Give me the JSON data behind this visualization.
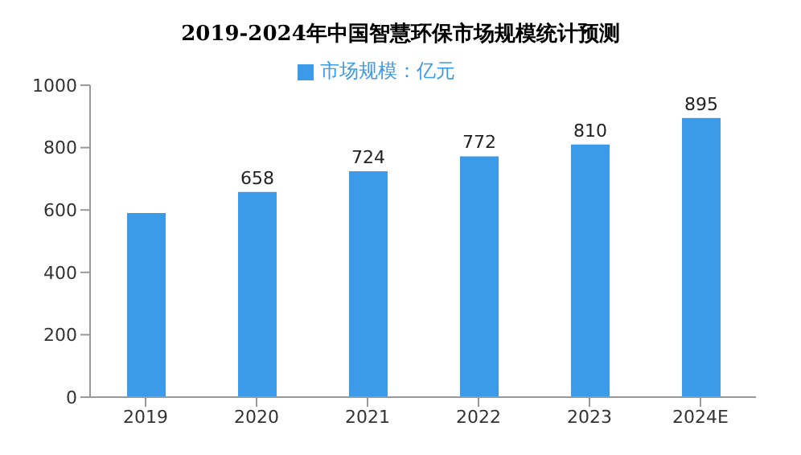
{
  "chart_data": {
    "type": "bar",
    "title": "2019-2024年中国智慧环保市场规模统计预测",
    "categories": [
      "2019",
      "2020",
      "2021",
      "2022",
      "2023",
      "2024E"
    ],
    "series": [
      {
        "name": "市场规模：亿元",
        "color": "#3c9be8",
        "values": [
          590,
          658,
          724,
          772,
          810,
          895
        ],
        "value_labels": [
          null,
          "658",
          "724",
          "772",
          "810",
          "895"
        ]
      }
    ],
    "ylim": [
      0,
      1000
    ],
    "yticks": [
      0,
      200,
      400,
      600,
      800,
      1000
    ],
    "grid": false,
    "legend": "top"
  }
}
